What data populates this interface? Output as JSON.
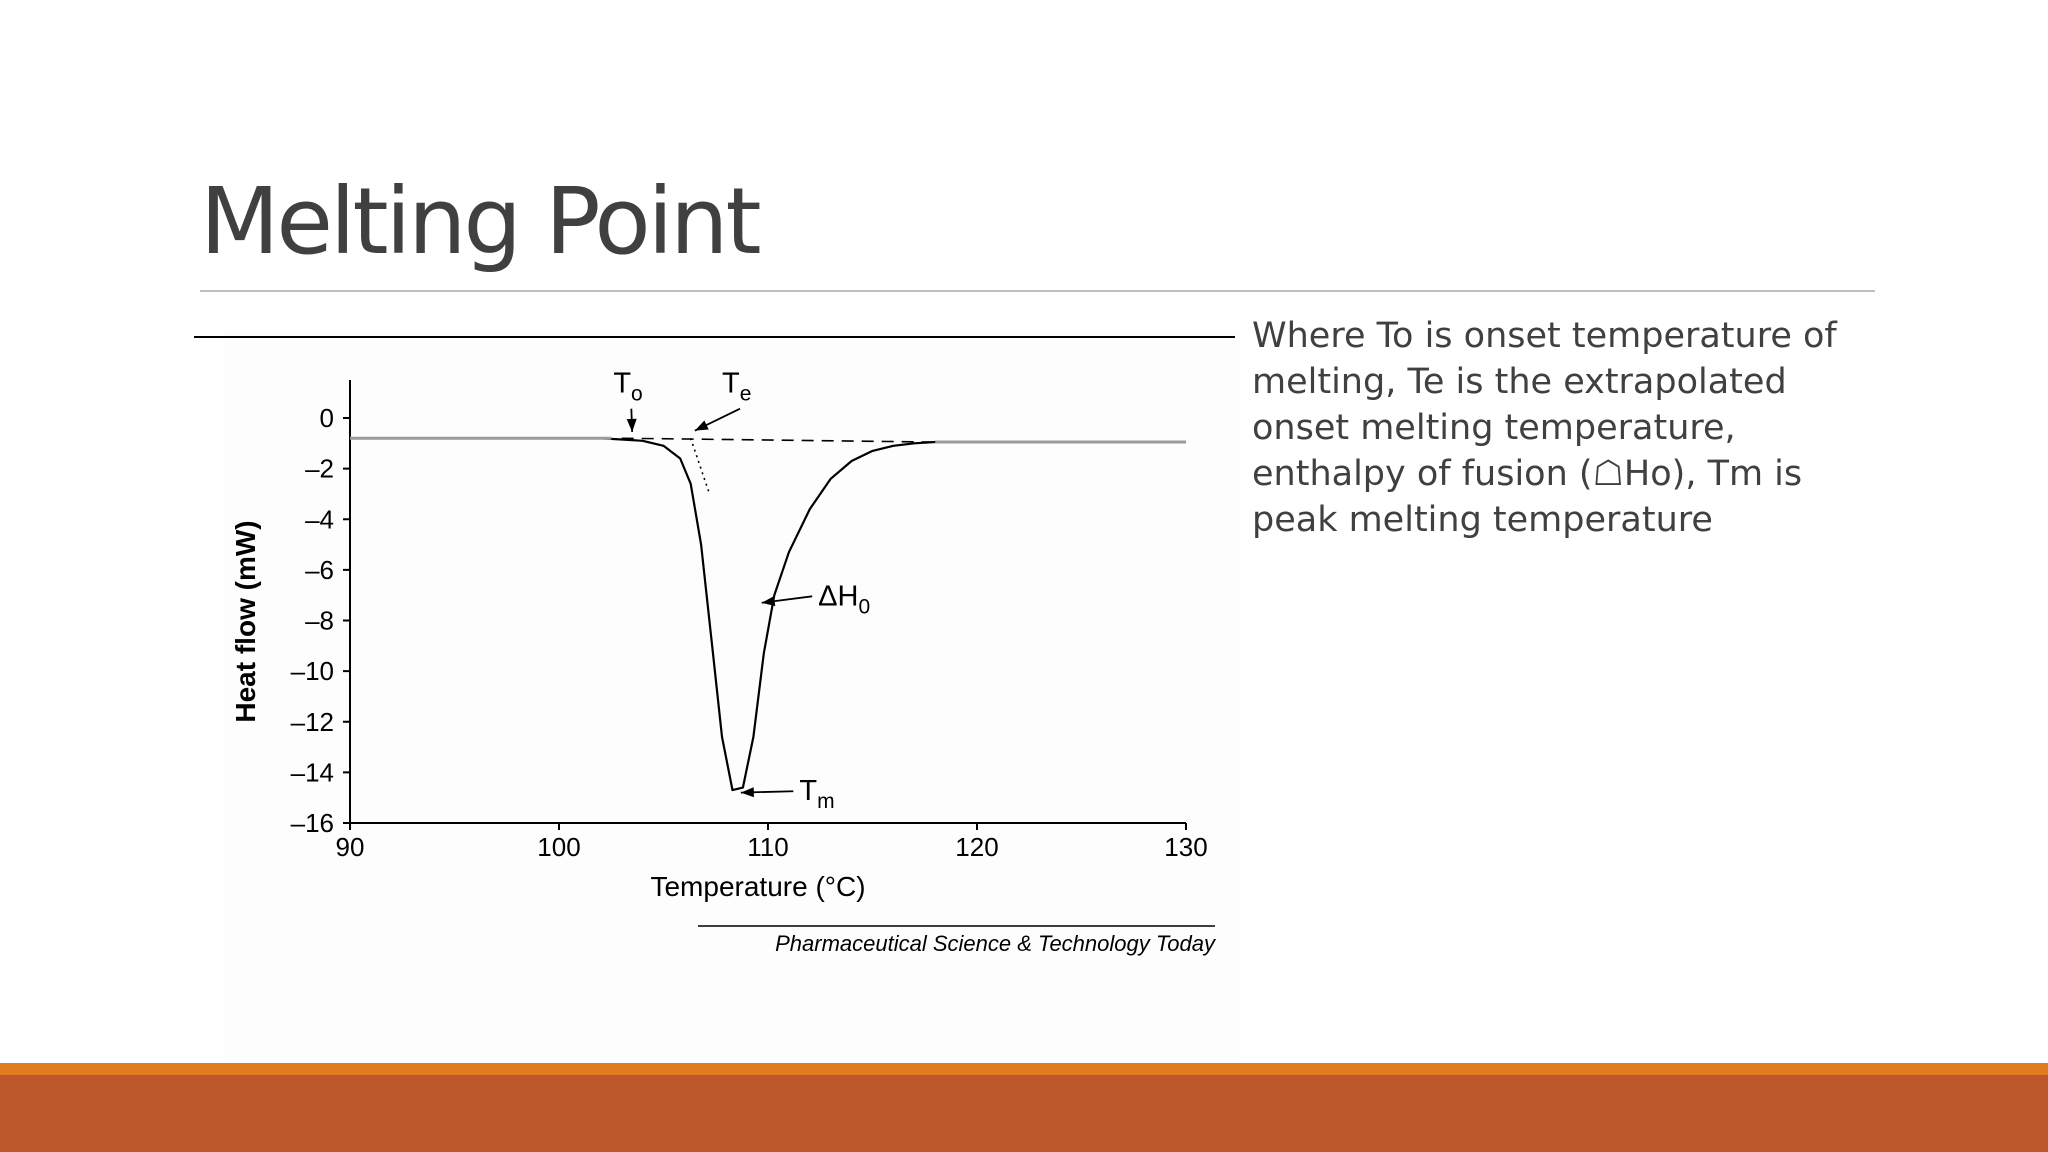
{
  "slide": {
    "title": "Melting Point",
    "caption": "Where To is onset temperature of melting, Te is the extrapolated onset melting temperature, enthalpy of fusion (☖Ho), Tm is peak melting temperature"
  },
  "colors": {
    "title": "#404040",
    "rule": "#bfbfbf",
    "footer_strip": "#e07b1f",
    "footer_bar": "#bd582c",
    "curve": "#000000",
    "baseline_gray": "#9a9a9a"
  },
  "chart_data": {
    "type": "line",
    "title": "",
    "xlabel": "Temperature (°C)",
    "ylabel": "Heat flow (mW)",
    "xlim": [
      90,
      130
    ],
    "ylim": [
      -16,
      1.5
    ],
    "xticks": [
      90,
      100,
      110,
      120,
      130
    ],
    "yticks": [
      0,
      -2,
      -4,
      -6,
      -8,
      -10,
      -12,
      -14,
      -16
    ],
    "xtick_labels": [
      "90",
      "100",
      "110",
      "120",
      "130"
    ],
    "ytick_labels": [
      "0",
      "–2",
      "–4",
      "–6",
      "–8",
      "–10",
      "–12",
      "–14",
      "–16"
    ],
    "grid": false,
    "source": "Pharmaceutical Science & Technology Today",
    "series": [
      {
        "x": [
          90,
          95,
          100,
          102,
          103,
          104,
          105,
          105.8,
          106.3,
          106.8,
          107.3,
          107.8,
          108.3,
          108.8,
          109.3,
          109.8,
          110.3,
          111,
          112,
          113,
          114,
          115,
          116,
          117,
          118,
          119,
          120,
          125,
          130
        ],
        "y": [
          -0.8,
          -0.8,
          -0.8,
          -0.8,
          -0.85,
          -0.9,
          -1.1,
          -1.6,
          -2.6,
          -5.0,
          -8.8,
          -12.6,
          -14.7,
          -14.6,
          -12.6,
          -9.3,
          -7.0,
          -5.3,
          -3.6,
          -2.4,
          -1.7,
          -1.3,
          -1.1,
          -1.0,
          -0.95,
          -0.95,
          -0.95,
          -0.95,
          -0.95
        ]
      }
    ],
    "extrapolated_baseline": {
      "x": [
        103,
        118
      ],
      "y": [
        -0.8,
        -0.95
      ]
    },
    "extrapolated_onset_tangent": {
      "x": [
        106.3,
        107.2
      ],
      "y": [
        -0.8,
        -3.0
      ]
    },
    "annotations": [
      {
        "main": "T",
        "sub": "o",
        "label_at": [
          102.6,
          1.0
        ],
        "point": [
          103.5,
          -0.55
        ]
      },
      {
        "main": "T",
        "sub": "e",
        "label_at": [
          107.8,
          1.0
        ],
        "point": [
          106.5,
          -0.5
        ]
      },
      {
        "main": "ΔH",
        "sub": "0",
        "label_at": [
          112.4,
          -7.4
        ],
        "point": [
          109.7,
          -7.3
        ]
      },
      {
        "main": "T",
        "sub": "m",
        "label_at": [
          111.5,
          -15.1
        ],
        "point": [
          108.7,
          -14.8
        ]
      }
    ]
  }
}
